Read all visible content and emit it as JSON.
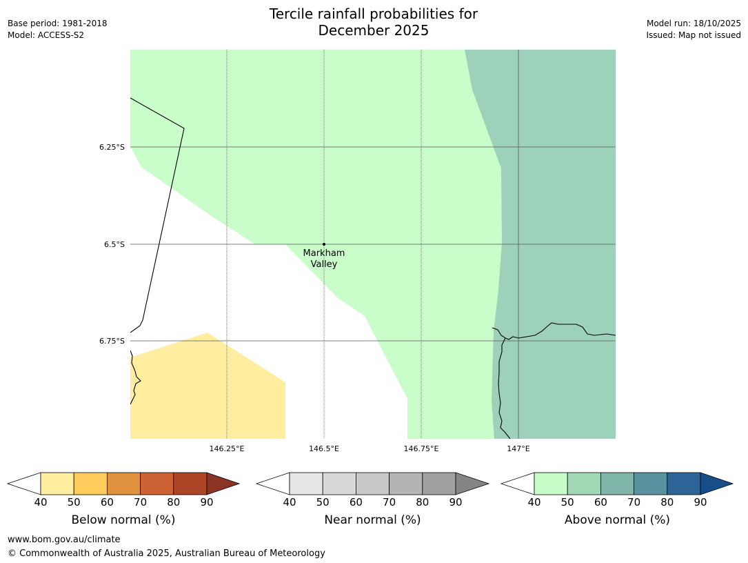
{
  "title": {
    "line1": "Tercile rainfall probabilities for",
    "line2": "December 2025"
  },
  "meta_left": {
    "base_period": "Base period: 1981-2018",
    "model": "Model: ACCESS-S2"
  },
  "meta_right": {
    "model_run": "Model run: 18/10/2025",
    "issued": "Issued: Map not issued"
  },
  "map": {
    "lat_labels": [
      "6.25°S",
      "6.5°S",
      "6.75°S"
    ],
    "lon_labels": [
      "146.25°E",
      "146.5°E",
      "146.75°E",
      "147°E"
    ],
    "place": {
      "line1": "Markham",
      "line2": "Valley"
    }
  },
  "colors": {
    "below": [
      "#ffffff",
      "#ffeda0",
      "#fecc5c",
      "#e0913e",
      "#cc6233",
      "#ad4527",
      "#8b3423"
    ],
    "near": [
      "#ffffff",
      "#e6e6e6",
      "#d8d8d8",
      "#c8c8c8",
      "#b4b4b4",
      "#a0a0a0",
      "#858585"
    ],
    "above": [
      "#ffffff",
      "#c7fcc9",
      "#a3d8b6",
      "#80b5aa",
      "#5a93a0",
      "#2e6597",
      "#174e8a"
    ],
    "map_above_40": "#c9fdca",
    "map_above_50": "#9ed1b9",
    "map_below_40": "#ffeda0"
  },
  "colorbars": [
    {
      "id": "below",
      "label": "Below normal (%)",
      "ticks": [
        "40",
        "50",
        "60",
        "70",
        "80",
        "90"
      ]
    },
    {
      "id": "near",
      "label": "Near normal (%)",
      "ticks": [
        "40",
        "50",
        "60",
        "70",
        "80",
        "90"
      ]
    },
    {
      "id": "above",
      "label": "Above normal (%)",
      "ticks": [
        "40",
        "50",
        "60",
        "70",
        "80",
        "90"
      ]
    }
  ],
  "footer": {
    "website": "www.bom.gov.au/climate",
    "copyright": "© Commonwealth of Australia 2025, Australian Bureau of Meteorology"
  }
}
